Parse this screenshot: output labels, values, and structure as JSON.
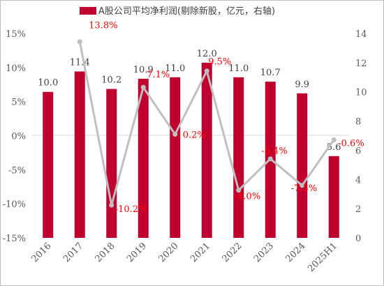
{
  "chart_data": {
    "type": "bar",
    "categories": [
      "2016",
      "2017",
      "2018",
      "2019",
      "2020",
      "2021",
      "2022",
      "2023",
      "2024",
      "2025H1"
    ],
    "series": [
      {
        "name": "A股公司平均净利润(剔除新股，亿元，右轴)",
        "type": "bar",
        "axis": "right",
        "values": [
          10.0,
          11.4,
          10.2,
          10.9,
          11.0,
          12.0,
          11.0,
          10.7,
          9.9,
          5.6
        ],
        "labels": [
          "10.0",
          "11.4",
          "10.2",
          "10.9",
          "11.0",
          "12.0",
          "11.0",
          "10.7",
          "9.9",
          "5.6"
        ],
        "color": "#c0002f"
      },
      {
        "type": "line",
        "axis": "left",
        "values": [
          null,
          13.8,
          -10.2,
          7.1,
          0.2,
          9.5,
          -8.0,
          -3.4,
          -7.3,
          -0.6
        ],
        "labels": [
          "",
          "13.8%",
          "-10.2%",
          "7.1%",
          "0.2%",
          "9.5%",
          "-8.0%",
          "-3.4%",
          "-7.3%",
          "-0.6%"
        ],
        "color": "#bfbfbf"
      }
    ],
    "y_left": {
      "min": -15,
      "max": 15,
      "ticks": [
        "-15%",
        "-10%",
        "-5%",
        "0%",
        "5%",
        "10%",
        "15%"
      ]
    },
    "y_right": {
      "min": 0,
      "max": 14,
      "ticks": [
        "0",
        "2",
        "4",
        "6",
        "8",
        "10",
        "12",
        "14"
      ]
    },
    "grid": false,
    "legend_position": "top"
  }
}
